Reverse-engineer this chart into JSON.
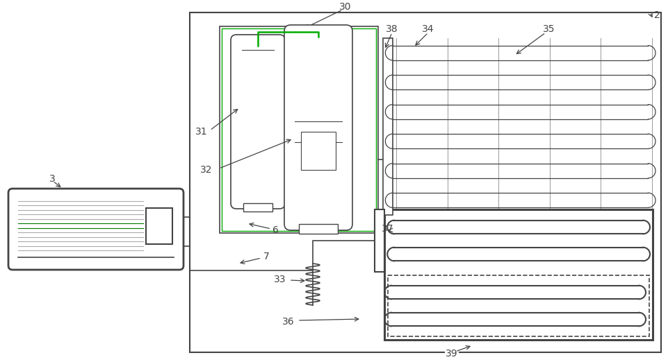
{
  "bg": "#ffffff",
  "lc": "#444444",
  "gc": "#999999",
  "green": "#00aa00",
  "figw": 9.61,
  "figh": 5.22,
  "dpi": 100
}
